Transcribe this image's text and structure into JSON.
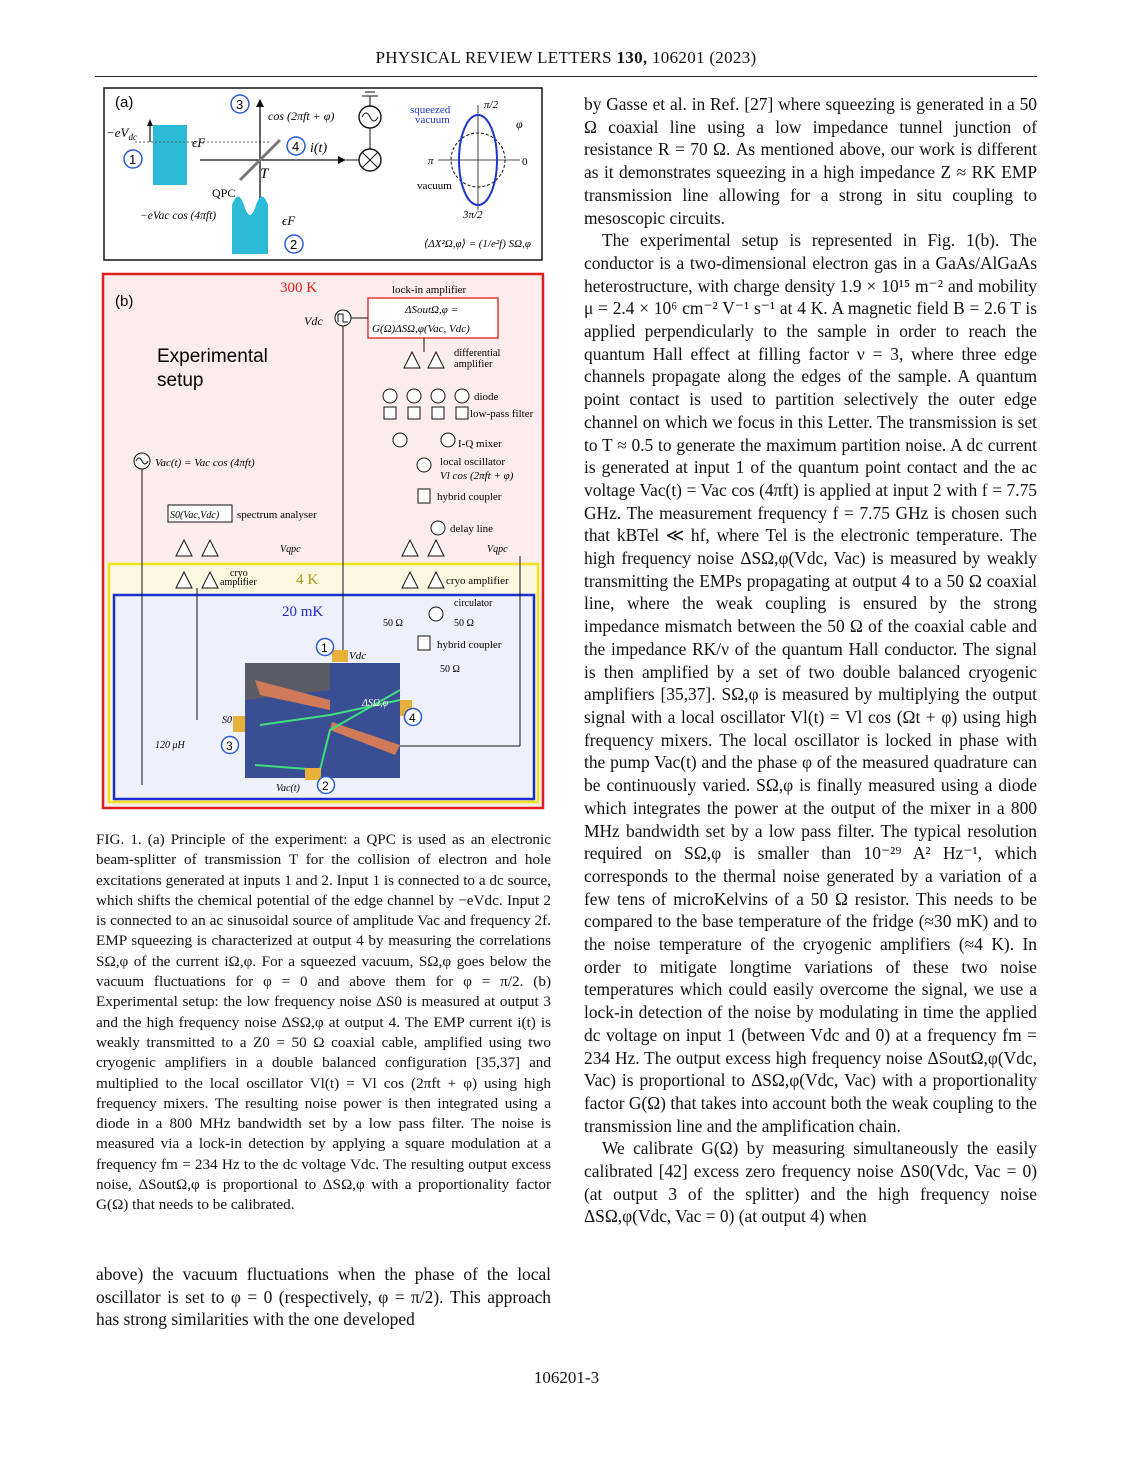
{
  "header": {
    "journal": "PHYSICAL REVIEW LETTERS",
    "volume": "130,",
    "article": "106201 (2023)"
  },
  "figure": {
    "panel_a": {
      "label": "(a)",
      "minus_eVdc": "−eV",
      "minus_eVdc_sub": "dc",
      "eps_f": "ϵF",
      "qpc": "QPC",
      "t_label": "T",
      "cos_label": "cos (2πft + φ)",
      "i_t": "i(t)",
      "vac_label": "−eVac cos (4πft)",
      "squeezed": "squeezed",
      "vacuum_top": "vacuum",
      "vacuum": "vacuum",
      "pi_half": "π/2",
      "pi": "π",
      "zero": "0",
      "three_pi_half": "3π/2",
      "phi": "φ",
      "formula": "⟨ΔX²Ω,φ⟩ = (1/e²f) SΩ,φ",
      "markers": [
        "1",
        "2",
        "3",
        "4"
      ]
    },
    "panel_b": {
      "label": "(b)",
      "temp_300k": "300 K",
      "temp_4k": "4 K",
      "temp_20mk": "20 mK",
      "experimental": "Experimental",
      "setup": "setup",
      "lockin": "lock-in amplifier",
      "lockin_f1": "ΔSoutΩ,φ =",
      "lockin_f2": "G(Ω)ΔSΩ,φ(Vac, Vdc)",
      "vdc": "Vdc",
      "diff_amp1": "differential",
      "diff_amp2": "amplifier",
      "diode": "diode",
      "lowpass": "low-pass filter",
      "iq_mixer": "I-Q mixer",
      "local_osc1": "local oscillator",
      "local_osc2": "Vl cos (2πft + φ)",
      "hybrid": "hybrid coupler",
      "delay": "delay line",
      "vqpc": "Vqpc",
      "vac_source": "Vac(t) = Vac cos (4πft)",
      "spectrum": "spectrum analyser",
      "s0_box": "S0(Vac,Vdc)",
      "cryo1": "cryo",
      "cryo2": "amplifier",
      "cryo_amp": "cryo amplifier",
      "circulator": "circulator",
      "fifty": "50 Ω",
      "hybrid2": "hybrid coupler",
      "uh": "120 μH",
      "s0": "S0",
      "vac_t": "Vac(t)",
      "dsw": "ΔSΩ,φ"
    }
  },
  "caption": "FIG. 1.  (a) Principle of the experiment: a QPC is used as an electronic beam-splitter of transmission T for the collision of electron and hole excitations generated at inputs 1 and 2. Input 1 is connected to a dc source, which shifts the chemical potential of the edge channel by −eVdc. Input 2 is connected to an ac sinusoidal source of amplitude Vac and frequency 2f. EMP squeezing is characterized at output 4 by measuring the correlations SΩ,φ of the current iΩ,φ. For a squeezed vacuum, SΩ,φ goes below the vacuum fluctuations for φ = 0 and above them for φ = π/2. (b) Experimental setup: the low frequency noise ΔS0 is measured at output 3 and the high frequency noise ΔSΩ,φ at output 4. The EMP current i(t) is weakly transmitted to a Z0 = 50 Ω coaxial cable, amplified using two cryogenic amplifiers in a double balanced configuration [35,37] and multiplied to the local oscillator Vl(t) = Vl cos (2πft + φ) using high frequency mixers. The resulting noise power is then integrated using a diode in a 800 MHz bandwidth set by a low pass filter. The noise is measured via a lock-in detection by applying a square modulation at a frequency fm = 234 Hz to the dc voltage Vdc. The resulting output excess noise, ΔSoutΩ,φ is proportional to ΔSΩ,φ with a proportionality factor G(Ω) that needs to be calibrated.",
  "left_text": "above) the vacuum fluctuations when the phase of the local oscillator is set to φ = 0 (respectively, φ = π/2). This approach has strong similarities with the one developed",
  "right_paragraphs": [
    "by Gasse et al. in Ref. [27] where squeezing is generated in a 50 Ω coaxial line using a low impedance tunnel junction of resistance R = 70 Ω. As mentioned above, our work is different as it demonstrates squeezing in a high impedance Z ≈ RK EMP transmission line allowing for a strong in situ coupling to mesoscopic circuits.",
    "The experimental setup is represented in Fig. 1(b). The conductor is a two-dimensional electron gas in a GaAs/AlGaAs heterostructure, with charge density 1.9 × 10¹⁵ m⁻² and mobility μ = 2.4 × 10⁶ cm⁻² V⁻¹ s⁻¹ at 4 K. A magnetic field B = 2.6 T is applied perpendicularly to the sample in order to reach the quantum Hall effect at filling factor ν = 3, where three edge channels propagate along the edges of the sample. A quantum point contact is used to partition selectively the outer edge channel on which we focus in this Letter. The transmission is set to T ≈ 0.5 to generate the maximum partition noise. A dc current is generated at input 1 of the quantum point contact and the ac voltage Vac(t) = Vac cos (4πft) is applied at input 2 with f = 7.75 GHz. The measurement frequency f = 7.75 GHz is chosen such that kBTel ≪ hf, where Tel is the electronic temperature. The high frequency noise ΔSΩ,φ(Vdc, Vac) is measured by weakly transmitting the EMPs propagating at output 4 to a 50 Ω coaxial line, where the weak coupling is ensured by the strong impedance mismatch between the 50 Ω of the coaxial cable and the impedance RK/ν of the quantum Hall conductor. The signal is then amplified by a set of two double balanced cryogenic amplifiers [35,37]. SΩ,φ is measured by multiplying the output signal with a local oscillator Vl(t) = Vl cos (Ωt + φ) using high frequency mixers. The local oscillator is locked in phase with the pump Vac(t) and the phase φ of the measured quadrature can be continuously varied. SΩ,φ is finally measured using a diode which integrates the power at the output of the mixer in a 800 MHz bandwidth set by a low pass filter. The typical resolution required on SΩ,φ is smaller than 10⁻²⁹ A² Hz⁻¹, which corresponds to the thermal noise generated by a variation of a few tens of microKelvins of a 50 Ω resistor. This needs to be compared to the base temperature of the fridge (≈30 mK) and to the noise temperature of the cryogenic amplifiers (≈4 K). In order to mitigate longtime variations of these two noise temperatures which could easily overcome the signal, we use a lock-in detection of the noise by modulating in time the applied dc voltage on input 1 (between Vdc and 0) at a frequency fm = 234 Hz. The output excess high frequency noise ΔSoutΩ,φ(Vdc, Vac) is proportional to ΔSΩ,φ(Vdc, Vac) with a proportionality factor G(Ω) that takes into account both the weak coupling to the transmission line and the amplification chain.",
    "We calibrate G(Ω) by measuring simultaneously the easily calibrated [42] excess zero frequency noise ΔS0(Vdc, Vac = 0) (at output 3 of the splitter) and the high frequency noise ΔSΩ,φ(Vdc, Vac = 0) (at output 4) when"
  ],
  "footer": "106201-3"
}
